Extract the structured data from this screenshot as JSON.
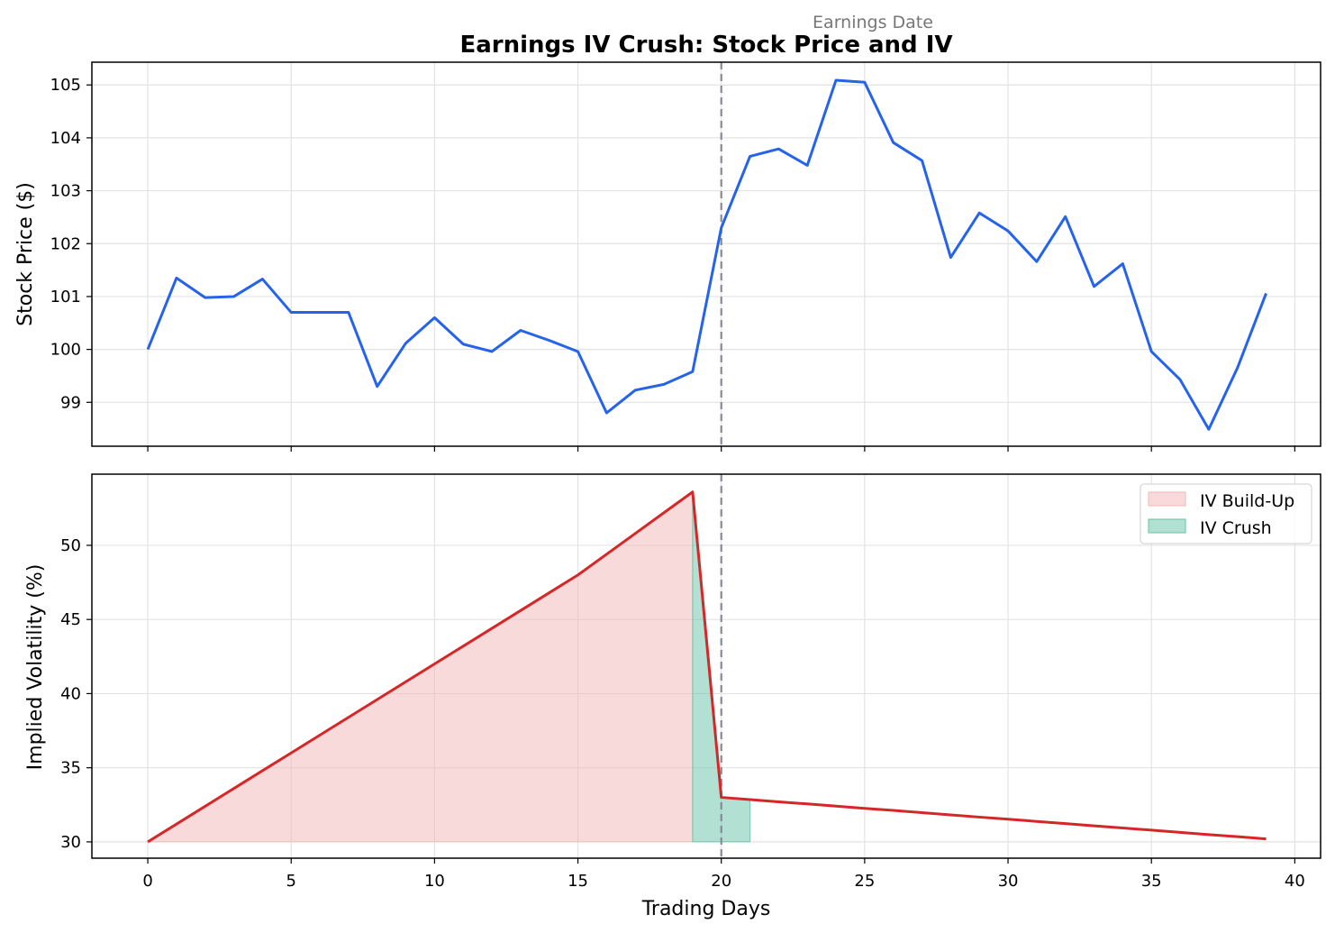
{
  "chart_data": [
    {
      "type": "line",
      "title": "Earnings IV Crush: Stock Price and IV",
      "annotation": "Earnings Date",
      "xlabel": "",
      "ylabel": "Stock Price ($)",
      "xlim": [
        -1.95,
        40.9
      ],
      "ylim": [
        98.17,
        105.43
      ],
      "xticks": [
        0,
        5,
        10,
        15,
        20,
        25,
        30,
        35,
        40
      ],
      "yticks": [
        99,
        100,
        101,
        102,
        103,
        104,
        105
      ],
      "grid": true,
      "vline_x": 20,
      "colors": {
        "line": "#2563eb",
        "vline": "#888899"
      },
      "x": [
        0,
        1,
        2,
        3,
        4,
        5,
        6,
        7,
        8,
        9,
        10,
        11,
        12,
        13,
        14,
        15,
        16,
        17,
        18,
        19,
        20,
        21,
        22,
        23,
        24,
        25,
        26,
        27,
        28,
        29,
        30,
        31,
        32,
        33,
        34,
        35,
        36,
        37,
        38,
        39
      ],
      "values": [
        100.0,
        101.35,
        100.98,
        101.0,
        101.33,
        100.7,
        100.7,
        100.7,
        99.3,
        100.12,
        100.6,
        100.1,
        99.96,
        100.36,
        100.17,
        99.96,
        98.8,
        99.23,
        99.34,
        99.58,
        102.3,
        103.65,
        103.79,
        103.48,
        105.09,
        105.05,
        103.91,
        103.57,
        101.74,
        102.58,
        102.24,
        101.66,
        102.51,
        101.19,
        101.62,
        99.96,
        99.43,
        98.49,
        99.65,
        101.06
      ]
    },
    {
      "type": "area",
      "xlabel": "Trading Days",
      "ylabel": "Implied Volatility (%)",
      "xlim": [
        -1.95,
        40.9
      ],
      "ylim": [
        28.9,
        54.8
      ],
      "xticks": [
        0,
        5,
        10,
        15,
        20,
        25,
        30,
        35,
        40
      ],
      "yticks": [
        30,
        35,
        40,
        45,
        50
      ],
      "grid": true,
      "vline_x": 20,
      "legend_position": "upper right",
      "baseline": 30,
      "colors": {
        "line": "#d62728",
        "buildup": "#f4b6b6",
        "crush": "#66c2a5",
        "vline": "#888899"
      },
      "x": [
        0,
        1,
        2,
        3,
        4,
        5,
        6,
        7,
        8,
        9,
        10,
        11,
        12,
        13,
        14,
        15,
        16,
        17,
        18,
        19,
        20,
        21,
        22,
        23,
        24,
        25,
        26,
        27,
        28,
        29,
        30,
        31,
        32,
        33,
        34,
        35,
        36,
        37,
        38,
        39
      ],
      "values": [
        30.0,
        31.2,
        32.4,
        33.6,
        34.8,
        36.0,
        37.2,
        38.4,
        39.6,
        40.8,
        42.0,
        43.2,
        44.4,
        45.6,
        46.8,
        48.0,
        49.4,
        50.8,
        52.2,
        53.6,
        33.0,
        32.85,
        32.7,
        32.56,
        32.41,
        32.26,
        32.12,
        31.97,
        31.82,
        31.67,
        31.53,
        31.38,
        31.23,
        31.08,
        30.94,
        30.79,
        30.64,
        30.49,
        30.35,
        30.2
      ],
      "fills": [
        {
          "name": "IV Build-Up",
          "x_range": [
            0,
            19
          ]
        },
        {
          "name": "IV Crush",
          "x_range": [
            19,
            21
          ]
        }
      ]
    }
  ]
}
